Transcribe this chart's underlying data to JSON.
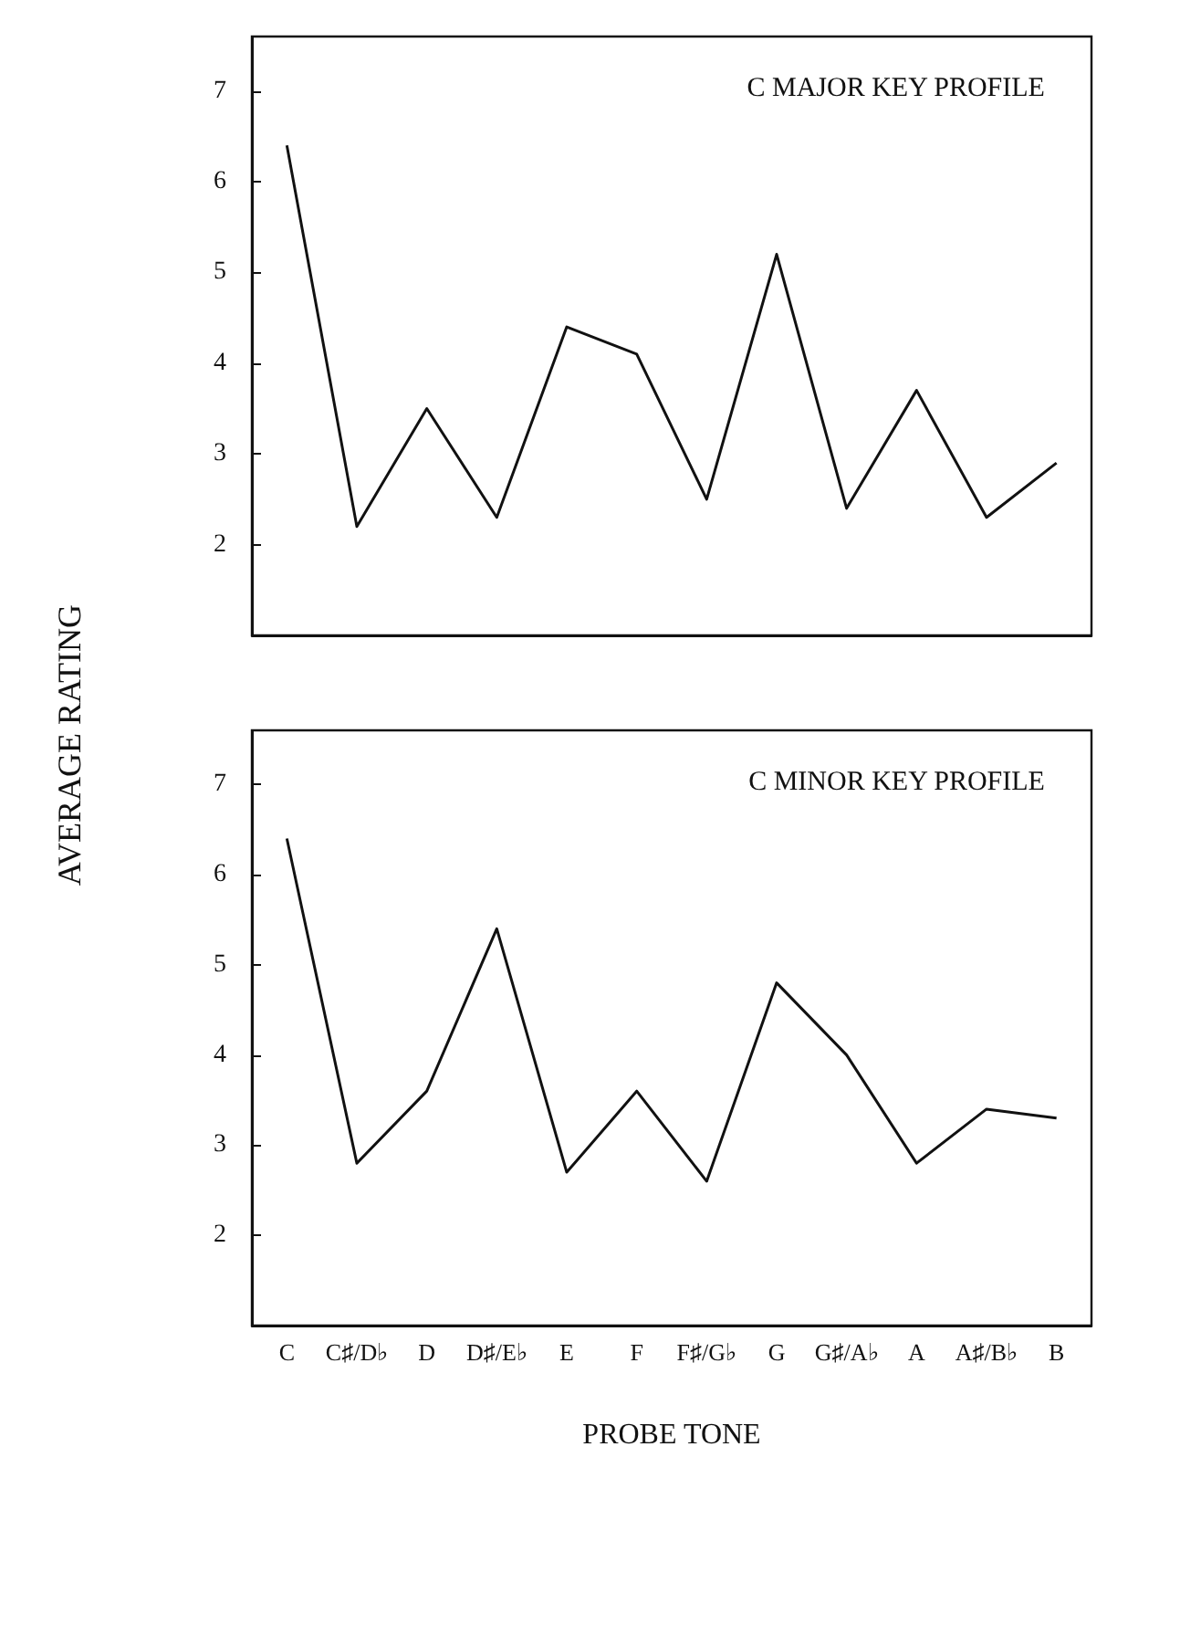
{
  "chart_data": [
    {
      "type": "line",
      "title": "C MAJOR KEY PROFILE",
      "ylabel": "AVERAGE RATING",
      "categories": [
        null,
        null,
        null,
        null,
        null,
        null,
        null,
        null,
        null,
        null,
        null,
        null
      ],
      "series": [
        {
          "color": "#111111",
          "values": [
            6.4,
            2.2,
            3.5,
            2.3,
            4.4,
            4.1,
            2.5,
            5.2,
            2.4,
            3.7,
            2.3,
            2.9
          ]
        }
      ],
      "ylim": [
        1,
        7.6
      ],
      "yticks": [
        2,
        3,
        4,
        5,
        6,
        7
      ],
      "marker": "none",
      "line_style": "solid",
      "grid": false
    },
    {
      "type": "line",
      "title": "C MINOR KEY PROFILE",
      "xlabel": "PROBE TONE",
      "categories": [
        "C",
        "C♯/D♭",
        "D",
        "D♯/E♭",
        "E",
        "F",
        "F♯/G♭",
        "G",
        "G♯/A♭",
        "A",
        "A♯/B♭",
        "B"
      ],
      "series": [
        {
          "color": "#111111",
          "values": [
            6.4,
            2.8,
            3.6,
            5.4,
            2.7,
            3.6,
            2.6,
            4.8,
            4.0,
            2.8,
            3.4,
            3.3
          ]
        }
      ],
      "ylim": [
        1,
        7.6
      ],
      "yticks": [
        2,
        3,
        4,
        5,
        6,
        7
      ],
      "marker": "none",
      "line_style": "solid",
      "grid": false
    }
  ]
}
